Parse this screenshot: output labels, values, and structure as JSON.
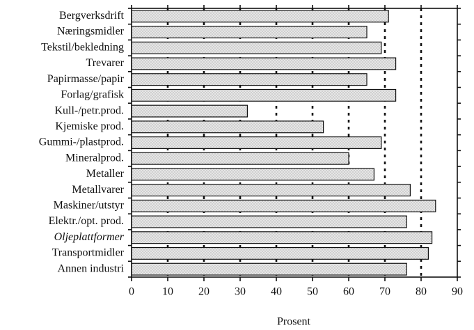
{
  "chart_data": {
    "type": "bar",
    "orientation": "horizontal",
    "categories": [
      "Bergverksdrift",
      "Næringsmidler",
      "Tekstil/bekledning",
      "Trevarer",
      "Papirmasse/papir",
      "Forlag/grafisk",
      "Kull-/petr.prod.",
      "Kjemiske prod.",
      "Gummi-/plastprod.",
      "Mineralprod.",
      "Metaller",
      "Metallvarer",
      "Maskiner/utstyr",
      "Elektr./opt. prod.",
      "Oljeplattformer",
      "Transportmidler",
      "Annen industri"
    ],
    "values": [
      71,
      65,
      69,
      73,
      65,
      73,
      32,
      53,
      69,
      60,
      67,
      77,
      84,
      76,
      83,
      82,
      76
    ],
    "title": "",
    "xlabel": "Prosent",
    "ylabel": "",
    "xlim": [
      0,
      90
    ],
    "xticks": [
      "0",
      "10",
      "20",
      "30",
      "40",
      "50",
      "60",
      "70",
      "80",
      "90"
    ],
    "grid": "vertical dotted lines",
    "legend": "none",
    "colors": {
      "bar_fill": "#d9d9d9",
      "bar_outline": "#111111",
      "text": "#111111",
      "background": "#ffffff"
    }
  }
}
